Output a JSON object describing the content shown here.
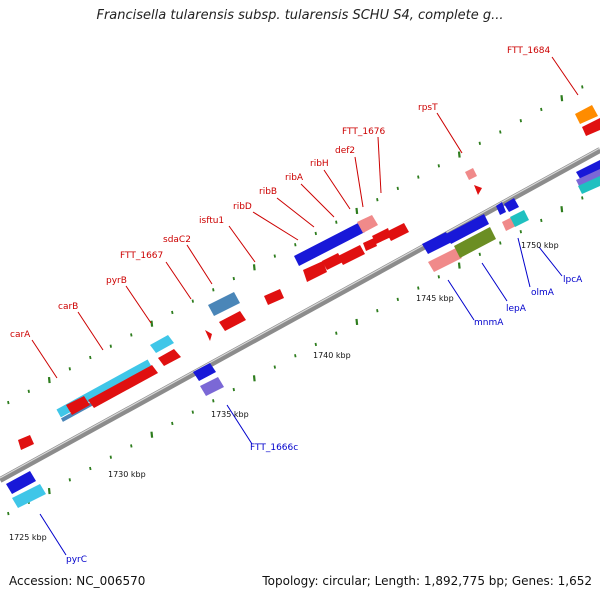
{
  "header": {
    "title": "Francisella tularensis subsp. tularensis SCHU S4, complete g..."
  },
  "footer": {
    "accession": "Accession: NC_006570",
    "topology": "Topology: circular; Length: 1,892,775 bp; Genes: 1,652"
  },
  "colors": {
    "backbone": "#8c8c8c",
    "forward_label": "#cc0000",
    "reverse_label": "#0000cc",
    "tick_dot": "#2e7d1e"
  },
  "scale_labels": [
    "1725 kbp",
    "1730 kbp",
    "1735 kbp",
    "1740 kbp",
    "1745 kbp",
    "1750 kbp"
  ],
  "genes_forward": [
    {
      "name": "carA",
      "color": "red"
    },
    {
      "name": "carB",
      "color": "red"
    },
    {
      "name": "pyrB",
      "color": "red"
    },
    {
      "name": "FTT_1667",
      "color": "red"
    },
    {
      "name": "sdaC2",
      "color": "red"
    },
    {
      "name": "isftu1",
      "color": "red"
    },
    {
      "name": "ribD",
      "color": "red"
    },
    {
      "name": "ribB",
      "color": "red"
    },
    {
      "name": "ribA",
      "color": "red"
    },
    {
      "name": "ribH",
      "color": "red"
    },
    {
      "name": "def2",
      "color": "red"
    },
    {
      "name": "FTT_1676",
      "color": "red"
    },
    {
      "name": "rpsT",
      "color": "red"
    },
    {
      "name": "FTT_1684",
      "color": "red"
    }
  ],
  "genes_reverse": [
    {
      "name": "pyrC",
      "color": "blue"
    },
    {
      "name": "FTT_1666c",
      "color": "blue"
    },
    {
      "name": "mnmA",
      "color": "blue"
    },
    {
      "name": "lepA",
      "color": "blue"
    },
    {
      "name": "olmA",
      "color": "blue"
    },
    {
      "name": "lpcA",
      "color": "blue"
    }
  ]
}
